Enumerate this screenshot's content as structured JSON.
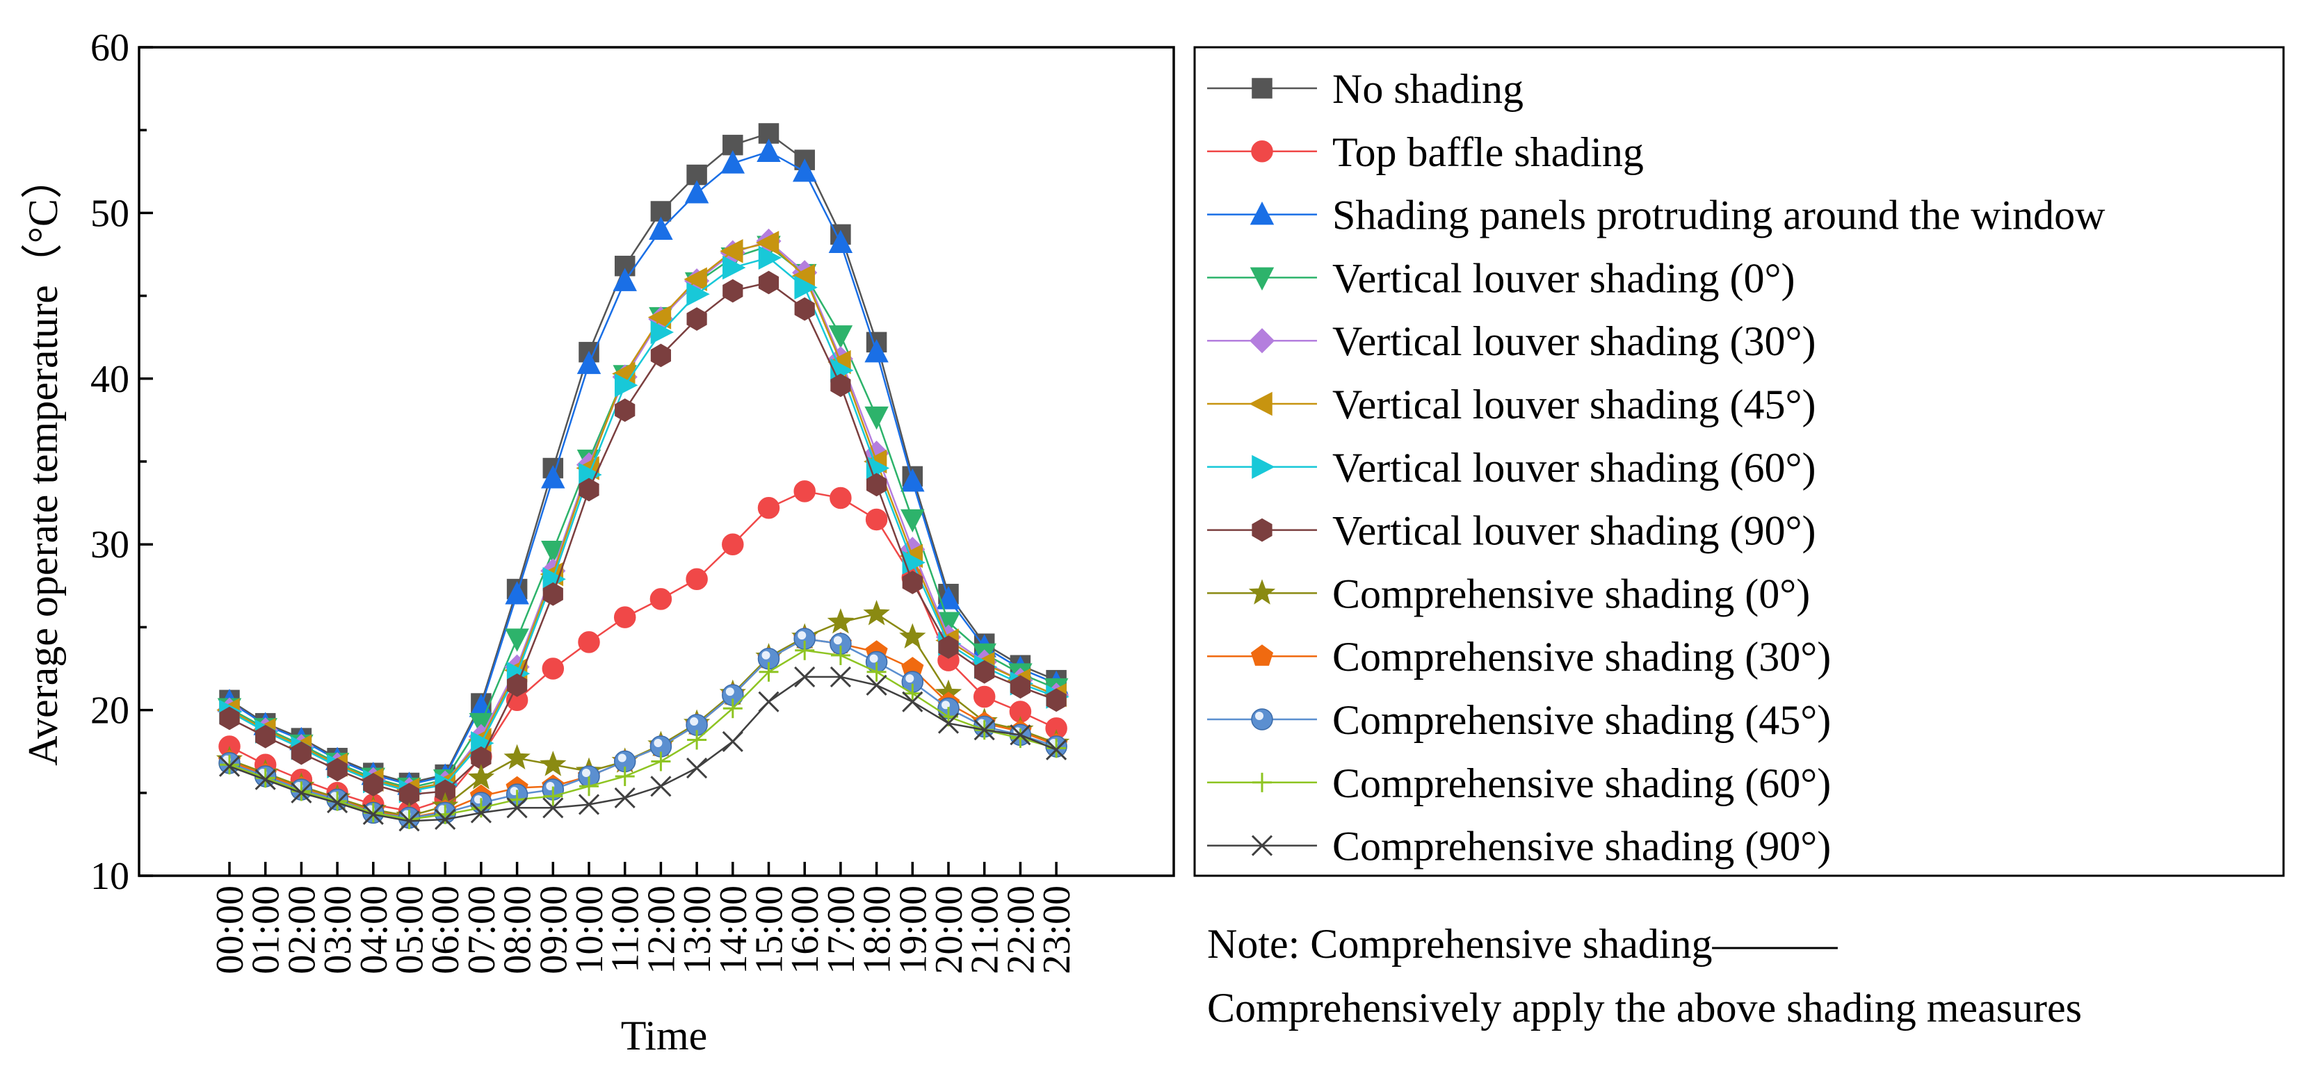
{
  "chart_data": {
    "type": "line",
    "xlabel": "Time",
    "ylabel": "Average operate temperature（°C）",
    "ylim": [
      10,
      60
    ],
    "yticks": [
      "10",
      "20",
      "30",
      "40",
      "50",
      "60"
    ],
    "categories": [
      "00:00",
      "01:00",
      "02:00",
      "03:00",
      "04:00",
      "05:00",
      "06:00",
      "07:00",
      "08:00",
      "09:00",
      "10:00",
      "11:00",
      "12:00",
      "13:00",
      "14:00",
      "15:00",
      "16:00",
      "17:00",
      "18:00",
      "19:00",
      "20:00",
      "21:00",
      "22:00",
      "23:00"
    ],
    "legend_position": "right",
    "series": [
      {
        "name": "No shading",
        "color": "#555555",
        "marker": "square",
        "values": [
          20.6,
          19.2,
          18.3,
          17.1,
          16.2,
          15.6,
          16.1,
          20.4,
          27.3,
          34.6,
          41.6,
          46.8,
          50.1,
          52.3,
          54.1,
          54.8,
          53.2,
          48.7,
          42.2,
          34.1,
          27.0,
          24.0,
          22.7,
          21.8
        ]
      },
      {
        "name": "Top baffle shading",
        "color": "#f04848",
        "marker": "circle",
        "values": [
          17.8,
          16.7,
          15.8,
          15.0,
          14.3,
          13.9,
          14.6,
          17.2,
          20.6,
          22.5,
          24.1,
          25.6,
          26.7,
          27.9,
          30.0,
          32.2,
          33.2,
          32.8,
          31.5,
          28.0,
          23.0,
          20.8,
          19.9,
          18.9
        ]
      },
      {
        "name": "Shading panels protruding around the window",
        "color": "#1a6fe6",
        "marker": "triangle-up",
        "values": [
          20.5,
          19.1,
          18.2,
          17.0,
          16.1,
          15.5,
          16.0,
          20.2,
          27.0,
          34.0,
          40.9,
          45.9,
          49.0,
          51.2,
          53.0,
          53.7,
          52.5,
          48.2,
          41.6,
          33.8,
          26.7,
          23.8,
          22.5,
          21.6
        ]
      },
      {
        "name": "Vertical louver shading (0°)",
        "color": "#2db36b",
        "marker": "triangle-down",
        "values": [
          20.1,
          18.9,
          17.9,
          16.8,
          15.9,
          15.3,
          15.8,
          19.2,
          24.3,
          29.6,
          35.1,
          40.2,
          43.7,
          45.8,
          47.3,
          48.0,
          46.3,
          42.6,
          37.7,
          31.5,
          25.3,
          23.4,
          22.2,
          21.3
        ]
      },
      {
        "name": "Vertical louver shading (30°)",
        "color": "#b47ede",
        "marker": "diamond",
        "values": [
          20.0,
          18.8,
          17.8,
          16.7,
          15.8,
          15.2,
          15.6,
          18.4,
          22.6,
          28.4,
          34.8,
          40.1,
          43.6,
          45.9,
          47.6,
          48.3,
          46.4,
          41.2,
          35.5,
          29.7,
          24.4,
          22.9,
          21.8,
          20.9
        ]
      },
      {
        "name": "Vertical louver shading (45°)",
        "color": "#c79410",
        "marker": "triangle-left",
        "values": [
          20.0,
          18.8,
          17.8,
          16.7,
          15.8,
          15.2,
          15.6,
          18.2,
          22.4,
          28.2,
          34.6,
          40.3,
          43.7,
          46.0,
          47.7,
          48.2,
          46.2,
          41.0,
          35.0,
          29.3,
          24.2,
          22.8,
          21.8,
          20.9
        ]
      },
      {
        "name": "Vertical louver shading (60°)",
        "color": "#18c8d8",
        "marker": "triangle-right",
        "values": [
          19.9,
          18.7,
          17.7,
          16.6,
          15.7,
          15.1,
          15.5,
          18.0,
          22.2,
          27.9,
          34.2,
          39.6,
          42.8,
          45.1,
          46.7,
          47.3,
          45.5,
          40.5,
          34.6,
          28.9,
          24.0,
          22.6,
          21.6,
          20.8
        ]
      },
      {
        "name": "Vertical louver shading (90°)",
        "color": "#7b3f3f",
        "marker": "hexagon",
        "values": [
          19.5,
          18.4,
          17.4,
          16.4,
          15.5,
          14.9,
          15.1,
          17.1,
          21.5,
          27.0,
          33.3,
          38.1,
          41.4,
          43.6,
          45.3,
          45.8,
          44.2,
          39.6,
          33.6,
          27.7,
          23.8,
          22.3,
          21.4,
          20.6
        ]
      },
      {
        "name": "Comprehensive shading (0°)",
        "color": "#8a8a12",
        "marker": "star",
        "values": [
          17.0,
          16.2,
          15.4,
          14.7,
          14.0,
          13.6,
          14.2,
          15.9,
          17.1,
          16.7,
          16.3,
          16.9,
          17.9,
          19.2,
          21.0,
          23.2,
          24.4,
          25.3,
          25.8,
          24.4,
          21.0,
          19.3,
          18.8,
          18.0
        ]
      },
      {
        "name": "Comprehensive shading (30°)",
        "color": "#f06a10",
        "marker": "pentagon",
        "values": [
          16.9,
          16.1,
          15.3,
          14.6,
          13.9,
          13.5,
          13.9,
          14.8,
          15.3,
          15.4,
          16.0,
          16.9,
          17.8,
          19.1,
          20.9,
          23.1,
          24.3,
          24.0,
          23.5,
          22.5,
          20.4,
          19.2,
          18.7,
          17.9
        ]
      },
      {
        "name": "Comprehensive shading (45°)",
        "color": "#5b8fd0",
        "marker": "ball",
        "values": [
          16.8,
          16.0,
          15.2,
          14.6,
          13.8,
          13.5,
          13.8,
          14.4,
          14.9,
          15.2,
          16.0,
          16.9,
          17.8,
          19.1,
          20.9,
          23.1,
          24.3,
          24.0,
          22.9,
          21.7,
          20.1,
          19.0,
          18.5,
          17.8
        ]
      },
      {
        "name": "Comprehensive shading (60°)",
        "color": "#8ec422",
        "marker": "plus",
        "values": [
          16.7,
          15.9,
          15.1,
          14.5,
          13.8,
          13.4,
          13.7,
          14.1,
          14.6,
          14.8,
          15.4,
          16.0,
          16.9,
          18.2,
          20.1,
          22.3,
          23.6,
          23.3,
          22.3,
          21.0,
          19.6,
          18.8,
          18.3,
          17.7
        ]
      },
      {
        "name": "Comprehensive shading (90°)",
        "color": "#404040",
        "marker": "x",
        "values": [
          16.6,
          15.8,
          15.0,
          14.4,
          13.7,
          13.3,
          13.4,
          13.8,
          14.1,
          14.1,
          14.3,
          14.7,
          15.4,
          16.5,
          18.1,
          20.5,
          22.0,
          22.0,
          21.5,
          20.5,
          19.2,
          18.8,
          18.5,
          17.6
        ]
      }
    ]
  },
  "note": {
    "line1": "Note: Comprehensive shading———",
    "line2": "Comprehensively apply the above shading measures"
  }
}
